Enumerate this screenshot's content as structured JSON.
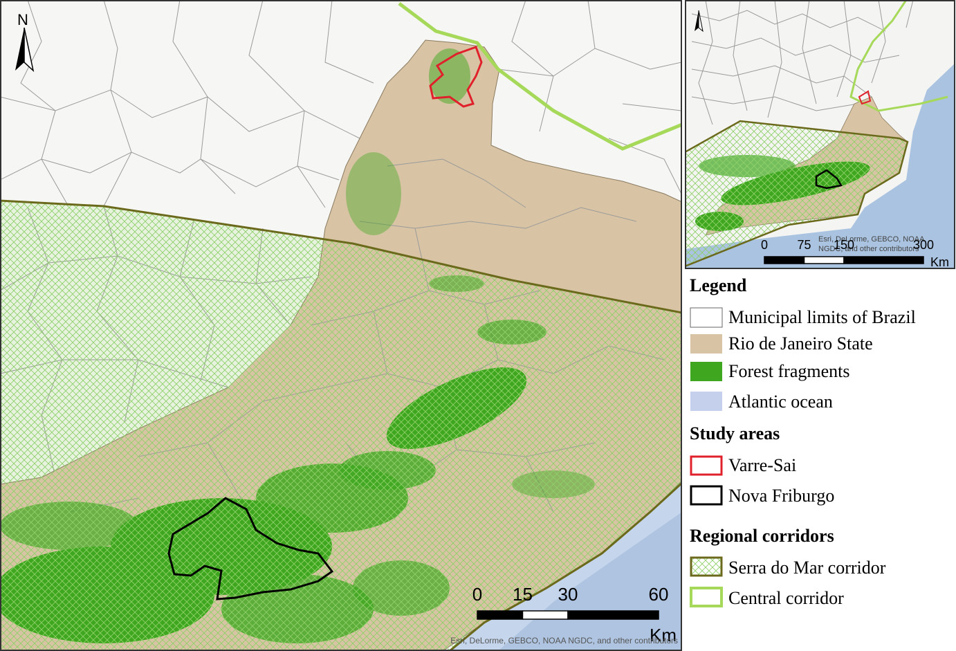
{
  "main_map": {
    "north": "N",
    "scale_bar": {
      "ticks": [
        0,
        15,
        30,
        60
      ],
      "unit": "Km"
    },
    "attribution": "Esri, DeLorme, GEBCO, NOAA NGDC, and other contributors"
  },
  "inset_map": {
    "scale_bar": {
      "ticks": [
        0,
        75,
        150,
        300
      ],
      "unit": "Km"
    },
    "attribution": [
      "Esri, DeLorme, GEBCO, NOAA",
      "NGDC, and other contributors"
    ]
  },
  "legend": {
    "title": "Legend",
    "items": [
      "Municipal limits of Brazil",
      "Rio de Janeiro State",
      "Forest fragments",
      "Atlantic ocean"
    ],
    "sections": [
      {
        "title": "Study areas",
        "items": [
          "Varre-Sai",
          "Nova Friburgo"
        ]
      },
      {
        "title": "Regional corridors",
        "items": [
          "Serra do Mar corridor",
          "Central corridor"
        ]
      }
    ]
  }
}
